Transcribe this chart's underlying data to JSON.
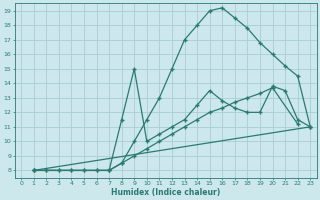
{
  "xlabel": "Humidex (Indice chaleur)",
  "bg_color": "#cce8ec",
  "grid_color": "#a8cdd4",
  "line_color": "#2a7a72",
  "xlim": [
    -0.5,
    23.5
  ],
  "ylim": [
    7.5,
    19.5
  ],
  "xticks": [
    0,
    1,
    2,
    3,
    4,
    5,
    6,
    7,
    8,
    9,
    10,
    11,
    12,
    13,
    14,
    15,
    16,
    17,
    18,
    19,
    20,
    21,
    22,
    23
  ],
  "yticks": [
    8,
    9,
    10,
    11,
    12,
    13,
    14,
    15,
    16,
    17,
    18,
    19
  ],
  "line1_x": [
    1,
    2,
    3,
    4,
    5,
    6,
    7,
    8,
    9,
    10,
    11,
    12,
    13,
    14,
    15,
    16,
    17,
    18,
    19,
    20,
    21,
    22,
    23
  ],
  "line1_y": [
    8,
    8,
    8,
    8,
    8,
    8,
    8,
    8.5,
    10,
    11.5,
    13,
    15,
    17,
    18,
    19,
    19.2,
    18.5,
    17.8,
    16.8,
    16,
    15.2,
    14.5,
    11
  ],
  "line2_x": [
    1,
    2,
    3,
    4,
    5,
    6,
    7,
    8,
    9,
    10,
    11,
    12,
    13,
    14,
    15,
    16,
    17,
    18,
    19,
    20,
    21,
    22,
    23
  ],
  "line2_y": [
    8,
    8,
    8,
    8,
    8,
    8,
    8,
    11.5,
    15,
    10,
    10.5,
    11,
    11.5,
    12.5,
    13.5,
    12.8,
    12.3,
    12,
    12,
    13.8,
    13.5,
    11.5,
    11
  ],
  "line3_x": [
    1,
    7,
    8,
    9,
    10,
    11,
    12,
    13,
    14,
    15,
    16,
    17,
    18,
    19,
    20,
    22
  ],
  "line3_y": [
    8,
    8,
    8.5,
    9,
    9.5,
    10,
    10.5,
    11,
    11.5,
    12,
    12.3,
    12.7,
    13,
    13.3,
    13.7,
    11.2
  ],
  "line4_x": [
    1,
    23
  ],
  "line4_y": [
    8,
    11
  ]
}
